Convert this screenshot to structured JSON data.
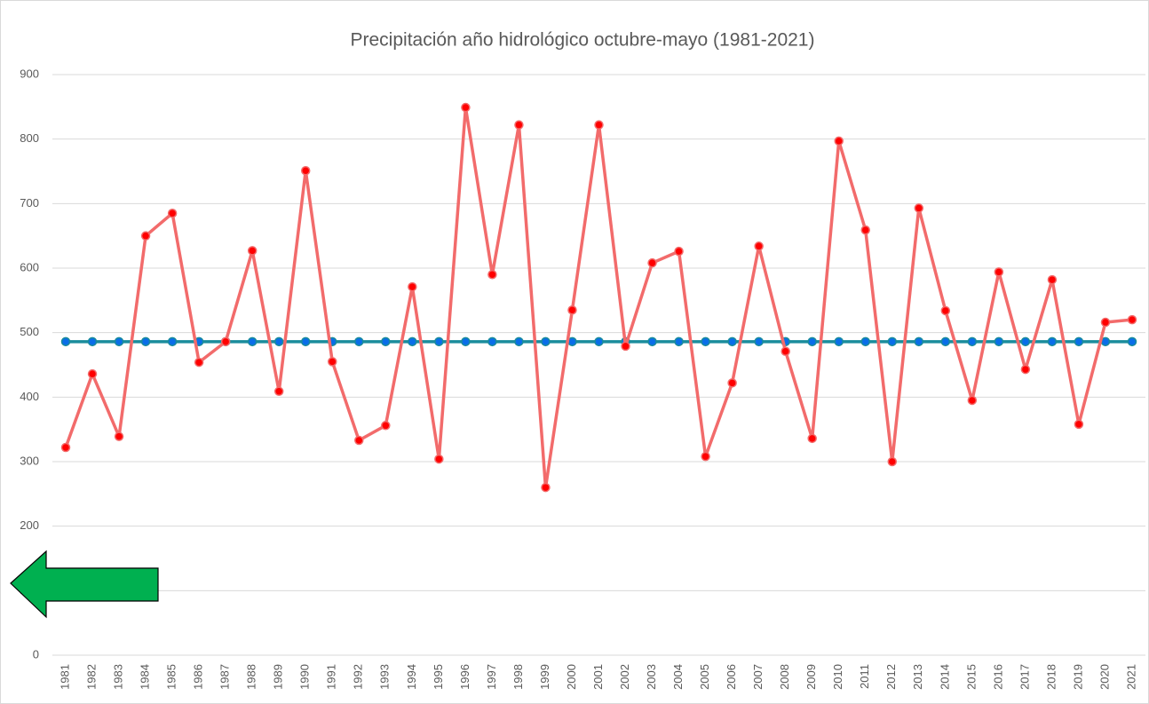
{
  "chart_data": {
    "type": "line",
    "title": "Precipitación año hidrológico octubre-mayo (1981-2021)",
    "categories": [
      "1981",
      "1982",
      "1983",
      "1984",
      "1985",
      "1986",
      "1987",
      "1988",
      "1989",
      "1990",
      "1991",
      "1992",
      "1993",
      "1994",
      "1995",
      "1996",
      "1997",
      "1998",
      "1999",
      "2000",
      "2001",
      "2002",
      "2003",
      "2004",
      "2005",
      "2006",
      "2007",
      "2008",
      "2009",
      "2010",
      "2011",
      "2012",
      "2013",
      "2014",
      "2015",
      "2016",
      "2017",
      "2018",
      "2019",
      "2020",
      "2021"
    ],
    "series": [
      {
        "color": "#f26b6b",
        "marker_color": "#ff0000",
        "values": [
          322,
          436,
          339,
          650,
          685,
          454,
          486,
          627,
          409,
          751,
          455,
          333,
          356,
          571,
          304,
          849,
          590,
          822,
          260,
          535,
          822,
          479,
          608,
          626,
          308,
          422,
          634,
          471,
          336,
          797,
          659,
          300,
          693,
          534,
          395,
          594,
          443,
          582,
          358,
          516,
          520
        ]
      },
      {
        "color": "#1a8c9c",
        "marker_color": "#0a6ee8",
        "values": [
          486,
          486,
          486,
          486,
          486,
          486,
          486,
          486,
          486,
          486,
          486,
          486,
          486,
          486,
          486,
          486,
          486,
          486,
          486,
          486,
          486,
          486,
          486,
          486,
          486,
          486,
          486,
          486,
          486,
          486,
          486,
          486,
          486,
          486,
          486,
          486,
          486,
          486,
          486,
          486,
          486
        ]
      }
    ],
    "ylim": [
      0,
      900
    ],
    "yticks": [
      0,
      100,
      200,
      300,
      400,
      500,
      600,
      700,
      800,
      900
    ],
    "grid": true
  }
}
